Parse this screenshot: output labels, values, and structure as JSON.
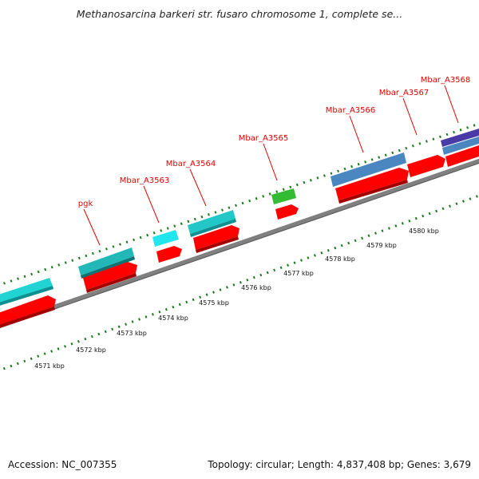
{
  "title": "Methanosarcina barkeri str. fusaro chromosome 1, complete se...",
  "accession": "Accession: NC_007355",
  "summary": "Topology: circular; Length: 4,837,408 bp; Genes: 3,679",
  "colors": {
    "backbone": "#808080",
    "tick": "#1a7a1a",
    "cds": "#ff0000",
    "label": "#e00000",
    "cyan": "#22d3d3",
    "teal": "#22b8b8",
    "blue": "#4a86c0",
    "green": "#33bb33",
    "purple": "#4a3aa8"
  },
  "scale_labels": [
    "4571 kbp",
    "4572 kbp",
    "4573 kbp",
    "4574 kbp",
    "4575 kbp",
    "4576 kbp",
    "4577 kbp",
    "4578 kbp",
    "4579 kbp",
    "4580 kbp"
  ],
  "genes": [
    "pgk",
    "Mbar_A3563",
    "Mbar_A3564",
    "Mbar_A3565",
    "Mbar_A3566",
    "Mbar_A3567",
    "Mbar_A3568"
  ]
}
